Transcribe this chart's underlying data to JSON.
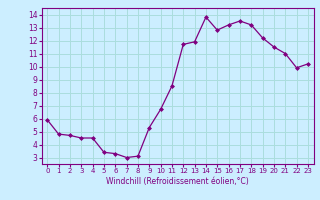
{
  "x": [
    0,
    1,
    2,
    3,
    4,
    5,
    6,
    7,
    8,
    9,
    10,
    11,
    12,
    13,
    14,
    15,
    16,
    17,
    18,
    19,
    20,
    21,
    22,
    23
  ],
  "y": [
    5.9,
    4.8,
    4.7,
    4.5,
    4.5,
    3.4,
    3.3,
    3.0,
    3.1,
    5.3,
    6.7,
    8.5,
    11.7,
    11.9,
    13.8,
    12.8,
    13.2,
    13.5,
    13.2,
    12.2,
    11.5,
    11.0,
    9.9,
    10.2
  ],
  "line_color": "#800080",
  "marker_color": "#800080",
  "bg_color": "#cceeff",
  "grid_color": "#aadddd",
  "xlabel": "Windchill (Refroidissement éolien,°C)",
  "xlabel_color": "#800080",
  "tick_color": "#800080",
  "ylim": [
    2.5,
    14.5
  ],
  "xlim": [
    -0.5,
    23.5
  ],
  "yticks": [
    3,
    4,
    5,
    6,
    7,
    8,
    9,
    10,
    11,
    12,
    13,
    14
  ],
  "xticks": [
    0,
    1,
    2,
    3,
    4,
    5,
    6,
    7,
    8,
    9,
    10,
    11,
    12,
    13,
    14,
    15,
    16,
    17,
    18,
    19,
    20,
    21,
    22,
    23
  ]
}
